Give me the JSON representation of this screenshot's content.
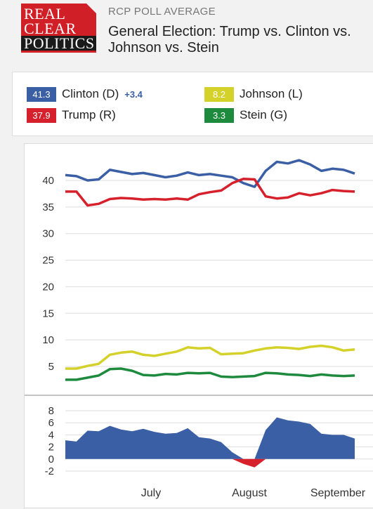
{
  "header": {
    "logo_lines": [
      "REAL",
      "CLEAR",
      "POLITICS"
    ],
    "kicker": "RCP POLL AVERAGE",
    "title_line1": "General Election: Trump vs. Clinton vs.",
    "title_line2": "Johnson vs. Stein"
  },
  "legend": {
    "items": [
      {
        "value": "41.3",
        "name": "Clinton (D)",
        "spread": "+3.4",
        "color": "#3a5fa4"
      },
      {
        "value": "37.9",
        "name": "Trump (R)",
        "spread": "",
        "color": "#d6202c"
      },
      {
        "value": "8.2",
        "name": "Johnson (L)",
        "spread": "",
        "color": "#d4d12a"
      },
      {
        "value": "3.3",
        "name": "Stein (G)",
        "spread": "",
        "color": "#1e8a3e"
      }
    ]
  },
  "chart_data": [
    {
      "type": "line",
      "title": "",
      "xlabel": "",
      "ylabel": "",
      "ylim": [
        0,
        45
      ],
      "yticks": [
        5,
        10,
        15,
        20,
        25,
        30,
        35,
        40
      ],
      "grid": true,
      "x_month_labels": [
        "July",
        "August",
        "September"
      ],
      "x": [
        0,
        4,
        8,
        12,
        16,
        20,
        24,
        28,
        32,
        36,
        40,
        44,
        48,
        52,
        56,
        60,
        64,
        68,
        72,
        76,
        80,
        84,
        88,
        92,
        96,
        100,
        104
      ],
      "series": [
        {
          "name": "Clinton (D)",
          "color": "#3a5fa4",
          "values": [
            41.0,
            40.8,
            40.0,
            40.2,
            42.0,
            41.6,
            41.2,
            41.4,
            41.0,
            40.6,
            40.9,
            41.5,
            41.0,
            41.2,
            40.9,
            40.6,
            39.5,
            38.8,
            41.8,
            43.5,
            43.2,
            43.8,
            43.0,
            41.8,
            42.2,
            42.0,
            41.3
          ]
        },
        {
          "name": "Trump (R)",
          "color": "#d6202c",
          "values": [
            37.9,
            37.9,
            35.3,
            35.6,
            36.5,
            36.7,
            36.6,
            36.4,
            36.5,
            36.4,
            36.6,
            36.4,
            37.4,
            37.8,
            38.1,
            39.5,
            40.3,
            40.2,
            37.0,
            36.6,
            36.8,
            37.6,
            37.2,
            37.6,
            38.2,
            38.0,
            37.9
          ]
        },
        {
          "name": "Johnson (L)",
          "color": "#d4d12a",
          "values": [
            4.6,
            4.6,
            5.1,
            5.5,
            7.2,
            7.6,
            7.8,
            7.2,
            7.0,
            7.4,
            7.8,
            8.6,
            8.4,
            8.5,
            7.3,
            7.4,
            7.5,
            8.0,
            8.4,
            8.6,
            8.5,
            8.3,
            8.7,
            8.9,
            8.6,
            8.0,
            8.2
          ]
        },
        {
          "name": "Stein (G)",
          "color": "#1e8a3e",
          "values": [
            2.5,
            2.5,
            2.9,
            3.3,
            4.5,
            4.6,
            4.2,
            3.4,
            3.3,
            3.6,
            3.5,
            3.8,
            3.7,
            3.8,
            3.1,
            3.0,
            3.1,
            3.2,
            3.8,
            3.7,
            3.5,
            3.4,
            3.2,
            3.5,
            3.3,
            3.2,
            3.3
          ]
        }
      ]
    },
    {
      "type": "area",
      "title": "",
      "xlabel": "",
      "ylabel": "",
      "ylim": [
        -2,
        8
      ],
      "yticks": [
        -2,
        0,
        2,
        4,
        6,
        8
      ],
      "grid": true,
      "x": [
        0,
        4,
        8,
        12,
        16,
        20,
        24,
        28,
        32,
        36,
        40,
        44,
        48,
        52,
        56,
        60,
        64,
        68,
        72,
        76,
        80,
        84,
        88,
        92,
        96,
        100,
        104
      ],
      "series": [
        {
          "name": "Clinton (D)",
          "positive_color": "#3a5fa4",
          "negative_color": "#d6202c",
          "values": [
            3.1,
            2.9,
            4.7,
            4.6,
            5.5,
            4.9,
            4.6,
            5.0,
            4.5,
            4.2,
            4.3,
            5.1,
            3.6,
            3.4,
            2.8,
            1.1,
            -0.8,
            -1.4,
            4.8,
            6.9,
            6.4,
            6.2,
            5.8,
            4.2,
            4.0,
            4.0,
            3.4
          ]
        }
      ]
    }
  ]
}
